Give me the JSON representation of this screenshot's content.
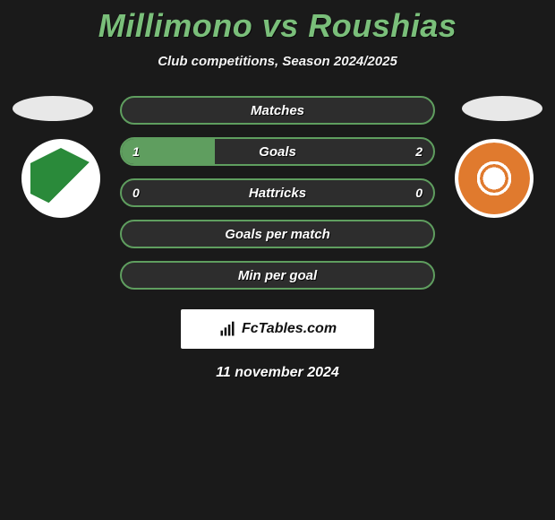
{
  "title": "Millimono vs Roushias",
  "subtitle": "Club competitions, Season 2024/2025",
  "accent_color": "#5f9e5f",
  "title_color": "#7abf7a",
  "background_color": "#1a1a1a",
  "stats": [
    {
      "label": "Matches",
      "left_val": "",
      "right_val": "",
      "left_pct": 0,
      "right_pct": 0
    },
    {
      "label": "Goals",
      "left_val": "1",
      "right_val": "2",
      "left_pct": 30,
      "right_pct": 0
    },
    {
      "label": "Hattricks",
      "left_val": "0",
      "right_val": "0",
      "left_pct": 0,
      "right_pct": 0
    },
    {
      "label": "Goals per match",
      "left_val": "",
      "right_val": "",
      "left_pct": 0,
      "right_pct": 0
    },
    {
      "label": "Min per goal",
      "left_val": "",
      "right_val": "",
      "left_pct": 0,
      "right_pct": 0
    }
  ],
  "brand": "FcTables.com",
  "date": "11 november 2024"
}
